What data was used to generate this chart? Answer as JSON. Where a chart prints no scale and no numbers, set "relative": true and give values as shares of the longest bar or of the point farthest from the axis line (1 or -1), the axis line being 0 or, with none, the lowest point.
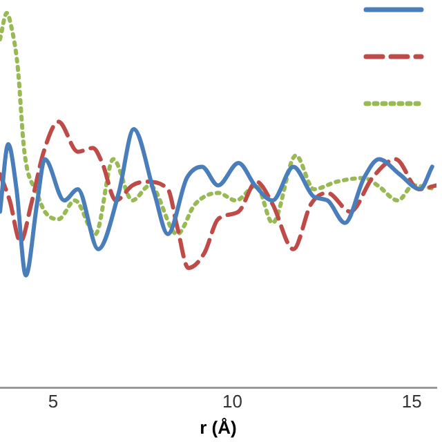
{
  "chart_data": {
    "type": "line",
    "xlabel": "r (Å)",
    "relative": true,
    "xlim": [
      3.52,
      15.69
    ],
    "xticks": [
      5,
      10,
      15
    ],
    "grid": false,
    "marker": "none",
    "series": [
      {
        "color": "#4a7ebb",
        "line_style": "solid",
        "x": [
          3.52,
          3.75,
          3.98,
          4.24,
          4.55,
          4.77,
          5.31,
          5.69,
          6.26,
          6.83,
          7.25,
          7.82,
          8.2,
          8.73,
          9.15,
          9.6,
          10.17,
          10.63,
          11.12,
          11.7,
          12.27,
          12.65,
          13.14,
          13.67,
          14.09,
          14.66,
          15.23,
          15.57
        ],
        "values": [
          0.47,
          0.65,
          0.53,
          0.3,
          0.49,
          0.61,
          0.5,
          0.53,
          0.37,
          0.52,
          0.69,
          0.52,
          0.41,
          0.56,
          0.59,
          0.54,
          0.6,
          0.54,
          0.5,
          0.59,
          0.51,
          0.5,
          0.44,
          0.56,
          0.61,
          0.57,
          0.53,
          0.59
        ]
      },
      {
        "color": "#be4b48",
        "line_style": "dashed",
        "x": [
          3.52,
          3.79,
          4.09,
          4.39,
          4.74,
          5.15,
          5.69,
          6.11,
          6.37,
          6.75,
          7.21,
          7.59,
          8.2,
          8.46,
          8.77,
          9.22,
          9.6,
          10.17,
          10.67,
          11.12,
          11.7,
          12.19,
          12.65,
          13.29,
          13.9,
          14.55,
          15.19,
          15.69
        ],
        "values": [
          0.57,
          0.5,
          0.39,
          0.49,
          0.63,
          0.71,
          0.63,
          0.64,
          0.6,
          0.5,
          0.54,
          0.55,
          0.53,
          0.43,
          0.32,
          0.36,
          0.45,
          0.47,
          0.55,
          0.49,
          0.37,
          0.49,
          0.52,
          0.47,
          0.56,
          0.61,
          0.53,
          0.54
        ]
      },
      {
        "color": "#98b954",
        "line_style": "dotted",
        "x": [
          3.52,
          3.71,
          3.82,
          4.01,
          4.2,
          4.55,
          4.77,
          5.15,
          5.61,
          6.18,
          6.68,
          7.21,
          7.7,
          8.46,
          8.96,
          9.6,
          10.1,
          10.67,
          11.12,
          11.77,
          12.27,
          12.91,
          13.67,
          14.05,
          14.62,
          15.04,
          15.69
        ],
        "values": [
          0.93,
          1,
          0.97,
          0.86,
          0.63,
          0.52,
          0.47,
          0.45,
          0.5,
          0.41,
          0.61,
          0.5,
          0.54,
          0.41,
          0.49,
          0.52,
          0.5,
          0.54,
          0.44,
          0.62,
          0.53,
          0.55,
          0.56,
          0.54,
          0.5,
          0.54,
          0.53
        ]
      }
    ]
  }
}
